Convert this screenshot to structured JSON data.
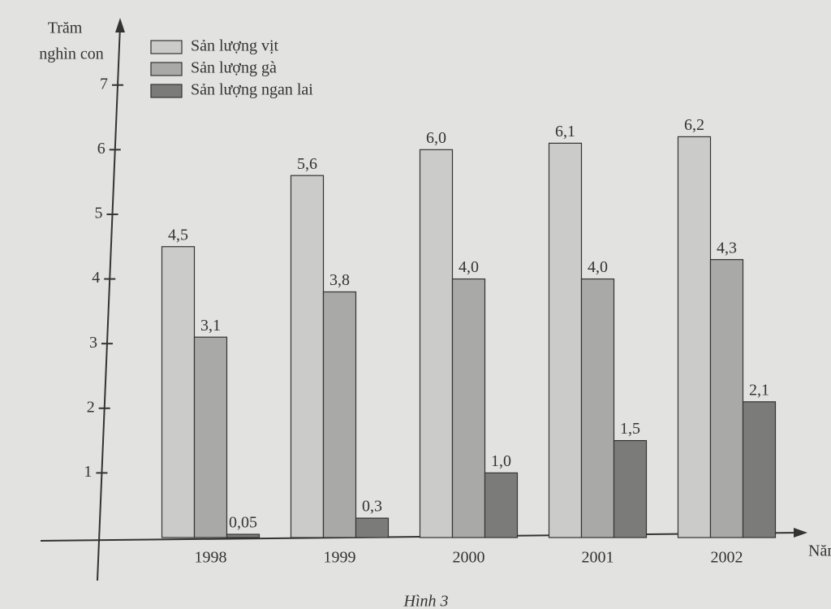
{
  "chart_data": {
    "type": "bar",
    "ylabel": [
      "Trăm",
      "nghìn con"
    ],
    "xlabel": "Năm",
    "caption": "Hình 3",
    "categories": [
      "1998",
      "1999",
      "2000",
      "2001",
      "2002"
    ],
    "series": [
      {
        "name": "Sản lượng vịt",
        "color": "#cbcbc9",
        "values": [
          4.5,
          5.6,
          6.0,
          6.1,
          6.2
        ],
        "value_labels": [
          "4,5",
          "5,6",
          "6,0",
          "6,1",
          "6,2"
        ]
      },
      {
        "name": "Sản lượng gà",
        "color": "#a9a9a7",
        "values": [
          3.1,
          3.8,
          4.0,
          4.0,
          4.3
        ],
        "value_labels": [
          "3,1",
          "3,8",
          "4,0",
          "4,0",
          "4,3"
        ]
      },
      {
        "name": "Sản lượng ngan lai",
        "color": "#7b7b79",
        "values": [
          0.05,
          0.3,
          1.0,
          1.5,
          2.1
        ],
        "value_labels": [
          "0,05",
          "0,3",
          "1,0",
          "1,5",
          "2,1"
        ]
      }
    ],
    "ylim": [
      0,
      7.7
    ],
    "yticks": [
      1,
      2,
      3,
      4,
      5,
      6,
      7
    ],
    "legend": "top-left"
  }
}
